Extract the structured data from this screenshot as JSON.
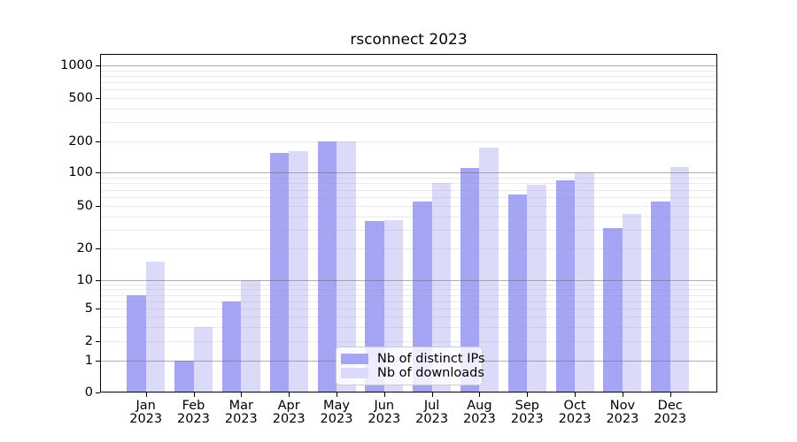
{
  "chart_data": {
    "type": "bar",
    "title": "rsconnect 2023",
    "categories": [
      "Jan 2023",
      "Feb 2023",
      "Mar 2023",
      "Apr 2023",
      "May 2023",
      "Jun 2023",
      "Jul 2023",
      "Aug 2023",
      "Sep 2023",
      "Oct 2023",
      "Nov 2023",
      "Dec 2023"
    ],
    "x_tick_months": [
      "Jan",
      "Feb",
      "Mar",
      "Apr",
      "May",
      "Jun",
      "Jul",
      "Aug",
      "Sep",
      "Oct",
      "Nov",
      "Dec"
    ],
    "x_tick_year": "2023",
    "series": [
      {
        "name": "Nb of distinct IPs",
        "color": "#a5a5f5",
        "values": [
          7,
          1,
          6,
          155,
          200,
          36,
          55,
          110,
          63,
          85,
          31,
          55
        ]
      },
      {
        "name": "Nb of downloads",
        "color": "#dbdbf9",
        "values": [
          15,
          3,
          10,
          160,
          200,
          37,
          80,
          175,
          78,
          101,
          42,
          113
        ]
      }
    ],
    "xlabel": "",
    "ylabel": "",
    "y_ticks": [
      0,
      1,
      2,
      5,
      10,
      20,
      50,
      100,
      200,
      500,
      1000
    ],
    "yscale": "log above 1, linear 0-1 (symlog-like)",
    "ylim": [
      0,
      1300
    ],
    "grid": "horizontal major (1,10,100,1000) + faint minors (2-9 per decade)",
    "legend_position": "lower center"
  },
  "colors": {
    "series_ips": "#a5a5f5",
    "series_downloads": "#dbdbf9",
    "major_grid": "#6e6e6e",
    "minor_grid": "#969696",
    "axis_line": "#000000",
    "legend_border": "#cccccc",
    "background": "#ffffff"
  }
}
